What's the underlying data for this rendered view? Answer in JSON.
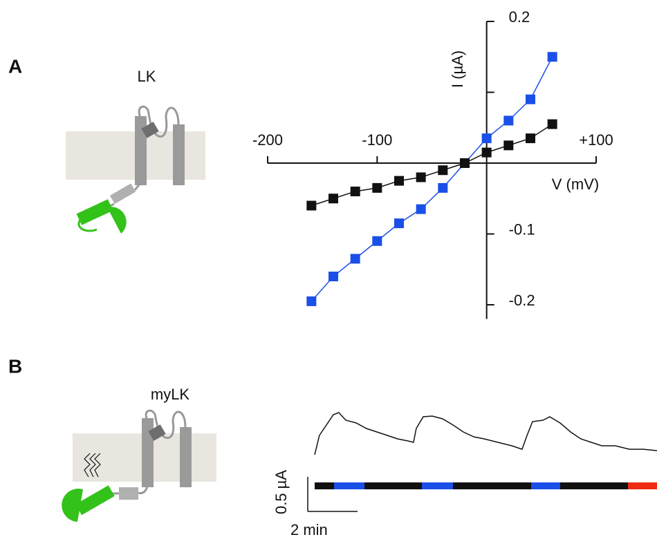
{
  "panel_labels": [
    "A",
    "B"
  ],
  "constructs": [
    "LK",
    "myLK"
  ],
  "chart_data": [
    {
      "type": "line",
      "x_label": "V (mV)",
      "y_label": "I (µA)",
      "marker": "square",
      "x": [
        -160,
        -140,
        -120,
        -100,
        -80,
        -60,
        -40,
        -20,
        0,
        20,
        40,
        60
      ],
      "series": [
        {
          "color": "#1a4fe8",
          "values": [
            -0.195,
            -0.16,
            -0.135,
            -0.11,
            -0.085,
            -0.065,
            -0.035,
            0,
            0.035,
            0.06,
            0.09,
            0.15
          ]
        },
        {
          "color": "#111111",
          "values": [
            -0.06,
            -0.05,
            -0.04,
            -0.035,
            -0.025,
            -0.02,
            -0.01,
            0,
            0.015,
            0.025,
            0.035,
            0.055
          ]
        }
      ],
      "xlim": [
        -200,
        100
      ],
      "ylim": [
        -0.22,
        0.2
      ],
      "xticks": [
        -200,
        -100,
        {
          "value": 100,
          "label": "+100"
        }
      ],
      "yticks": [
        -0.2,
        -0.1,
        0.2
      ],
      "y_minor_ticks": [
        0.1
      ]
    },
    {
      "type": "trace",
      "x": [
        0,
        0.19,
        0.47,
        0.75,
        0.97,
        1.25,
        1.67,
        2.08,
        2.5,
        2.92,
        3.33,
        3.75,
        3.97,
        4.08,
        4.36,
        4.72,
        5.14,
        5.56,
        5.97,
        6.39,
        6.81,
        7.36,
        7.92,
        8.33,
        8.53,
        8.75,
        9.17,
        9.44,
        9.86,
        10.28,
        10.69,
        11.11,
        11.53,
        12.08,
        12.64,
        13.19,
        13.75
      ],
      "series": [
        {
          "color": "#111111",
          "values": [
            0.02,
            0.3,
            0.45,
            0.6,
            0.63,
            0.52,
            0.48,
            0.4,
            0.35,
            0.3,
            0.25,
            0.22,
            0.2,
            0.4,
            0.57,
            0.58,
            0.54,
            0.45,
            0.35,
            0.28,
            0.25,
            0.2,
            0.15,
            0.1,
            0.3,
            0.5,
            0.52,
            0.57,
            0.48,
            0.35,
            0.25,
            0.2,
            0.15,
            0.15,
            0.1,
            0.1,
            0.08
          ]
        }
      ],
      "xlim": [
        0,
        13.75
      ],
      "ylim": [
        0,
        0.7
      ],
      "scale_bar": {
        "x": 2,
        "x_label": "2 min",
        "y": 0.5,
        "y_label": "0.5 µA"
      }
    }
  ]
}
